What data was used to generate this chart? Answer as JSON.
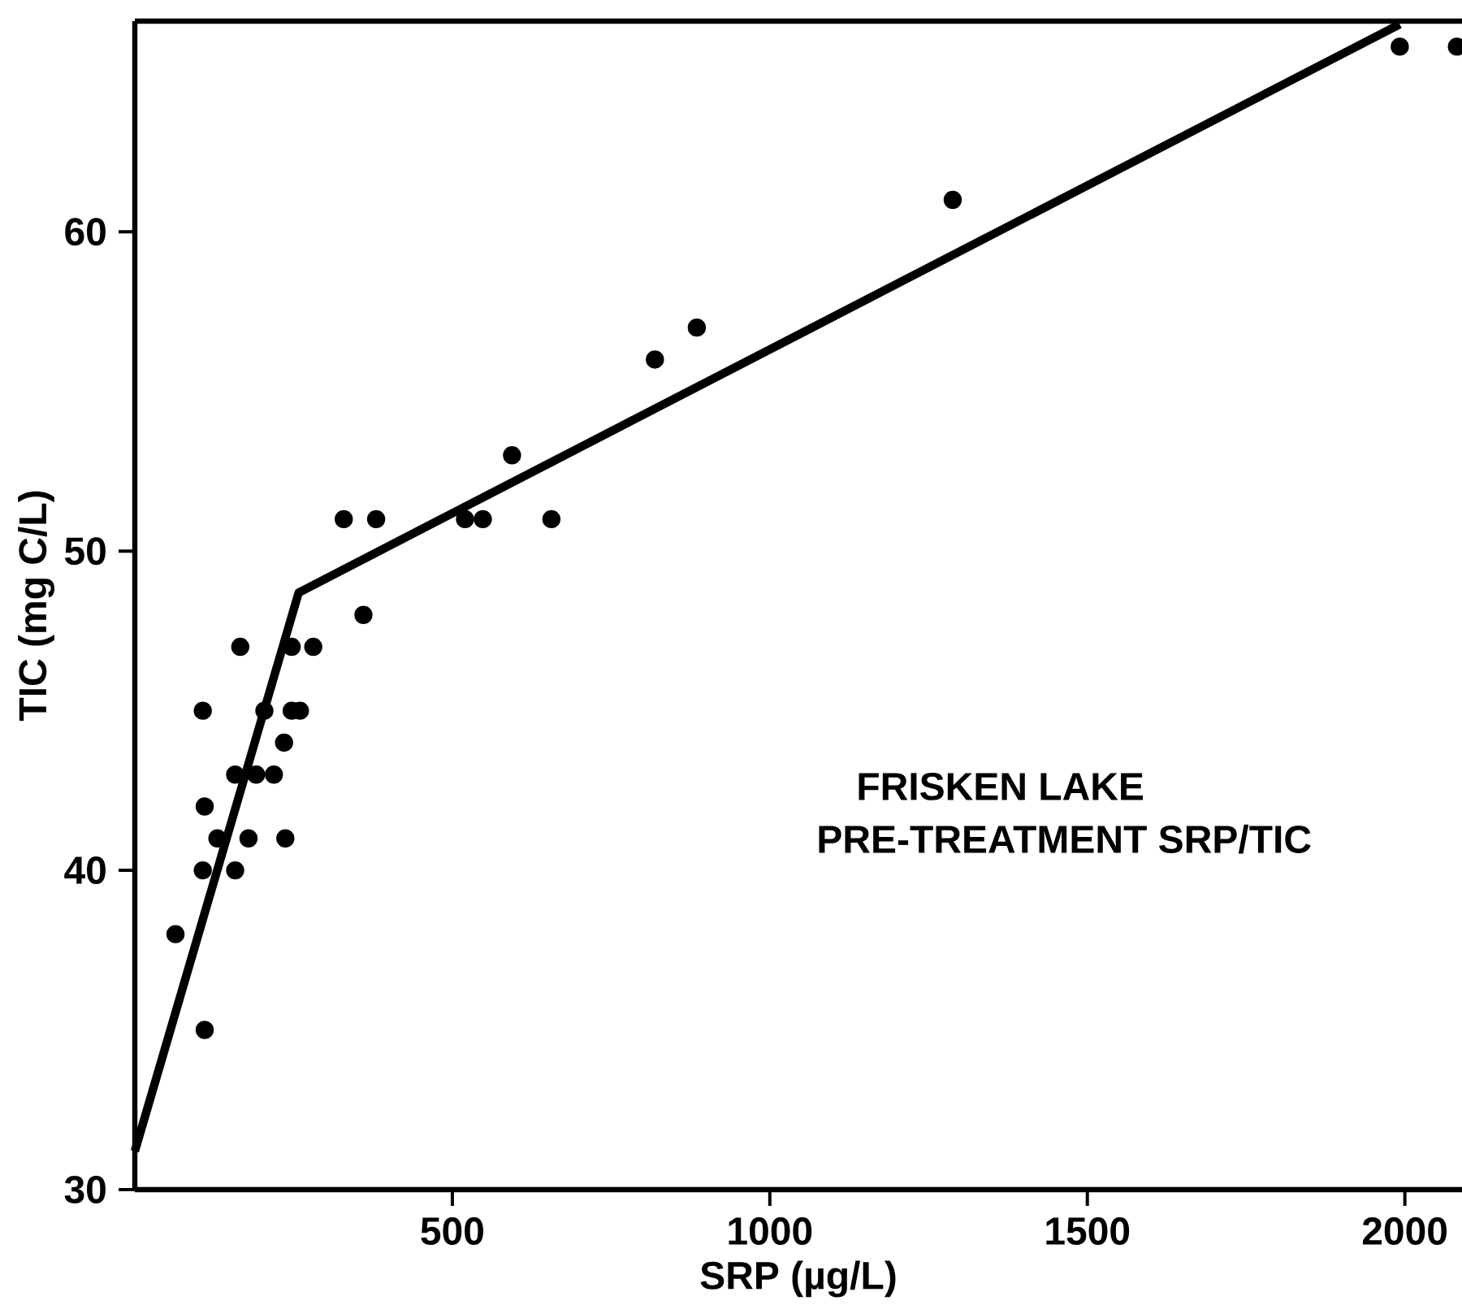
{
  "chart_data": {
    "type": "scatter",
    "xlabel": "SRP (µg/L)",
    "ylabel": "TIC (mg C/L)",
    "annotations": [
      "FRISKEN LAKE",
      "PRE-TREATMENT SRP/TIC"
    ],
    "xlim": [
      0,
      2090
    ],
    "ylim": [
      30,
      66.6
    ],
    "xticks": [
      500,
      1000,
      1500,
      2000
    ],
    "yticks": [
      30,
      40,
      50,
      60
    ],
    "grid": false,
    "marker": "circle",
    "series": [
      {
        "color": "#000000",
        "x": [
          329,
          380,
          520,
          548,
          656,
          594,
          819,
          885,
          360,
          1288,
          1992,
          2082,
          166,
          247,
          281,
          107,
          204,
          247,
          260,
          235,
          158,
          191,
          219,
          110,
          130,
          179,
          237,
          107,
          158,
          64,
          110
        ],
        "values": [
          51,
          51,
          51,
          51,
          51,
          53,
          56,
          57,
          48,
          61,
          65.8,
          65.8,
          47,
          47,
          47,
          45,
          45,
          45,
          45,
          44,
          43,
          43,
          43,
          42,
          41,
          41,
          41,
          40,
          40,
          38,
          35
        ]
      },
      {
        "type": "line",
        "color": "#000000",
        "marker": "none",
        "line_style": "solid",
        "x": [
          0,
          258,
          1992
        ],
        "values": [
          31.2,
          48.7,
          66.5
        ]
      }
    ]
  }
}
